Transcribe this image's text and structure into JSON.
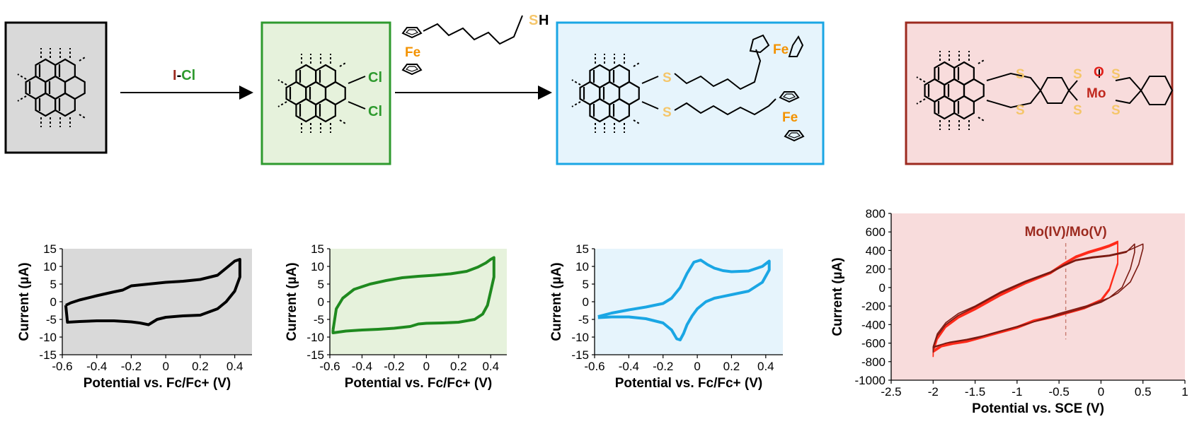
{
  "colors": {
    "box_gray": "#d9d9d9",
    "box_green_fill": "#e6f2dc",
    "box_green_edge": "#2e9a2e",
    "box_blue_fill": "#e6f4fc",
    "box_blue_edge": "#1aa6e4",
    "box_red_fill": "#f8dcdc",
    "box_red_edge": "#9c2a1f",
    "sulfur": "#f5c66a",
    "iron": "#f39200",
    "chlorine": "#2e9a2e",
    "iodine": "#9c2a1f",
    "molybdenum": "#c0281e",
    "oxygen": "#e0201a"
  },
  "scheme": {
    "reagent_iodine": "I",
    "reagent_dash": "-",
    "reagent_chlorine": "Cl",
    "cl_top": "Cl",
    "cl_bottom": "Cl",
    "ferrocene_reagent_fe": "Fe",
    "thiol_s": "S",
    "thiol_h": "H",
    "product_s_top": "S",
    "product_s_bottom": "S",
    "product_fe_top": "Fe",
    "product_fe_bottom": "Fe",
    "mo_s1": "S",
    "mo_s2": "S",
    "mo_s3": "S",
    "mo_s4": "S",
    "mo_s5": "S",
    "mo_s6": "S",
    "mo_label": "Mo",
    "mo_oxo": "O"
  },
  "chart_data": [
    {
      "type": "line",
      "background": "#d9d9d9",
      "line_color": "#000000",
      "xlabel": "Potential vs. Fc/Fc+ (V)",
      "ylabel": "Current (µA)",
      "xlim": [
        -0.6,
        0.5
      ],
      "ylim": [
        -15,
        15
      ],
      "xticks": [
        "-0.6",
        "-0.4",
        "-0.2",
        "0",
        "0.2",
        "0.4"
      ],
      "yticks": [
        "15",
        "10",
        "5",
        "0",
        "-5",
        "-10",
        "-15"
      ],
      "series": [
        {
          "x": [
            -0.58,
            -0.55,
            -0.5,
            -0.4,
            -0.3,
            -0.25,
            -0.2,
            -0.1,
            0,
            0.1,
            0.2,
            0.3,
            0.35,
            0.4,
            0.43,
            0.43,
            0.4,
            0.35,
            0.3,
            0.2,
            0.1,
            0,
            -0.05,
            -0.1,
            -0.15,
            -0.2,
            -0.3,
            -0.4,
            -0.5,
            -0.57,
            -0.58
          ],
          "y": [
            -1,
            -0.3,
            0.5,
            1.7,
            2.8,
            3.3,
            4.5,
            5,
            5.5,
            5.8,
            6.3,
            7.5,
            9.5,
            11.5,
            12,
            7,
            3,
            0,
            -2,
            -3.8,
            -4,
            -4.4,
            -5,
            -6.5,
            -6,
            -5.7,
            -5.4,
            -5.4,
            -5.6,
            -5.8,
            -1
          ]
        }
      ]
    },
    {
      "type": "line",
      "background": "#e6f2dc",
      "line_color": "#1f8a1f",
      "xlabel": "Potential vs. Fc/Fc+ (V)",
      "ylabel": "Current (µA)",
      "xlim": [
        -0.6,
        0.5
      ],
      "ylim": [
        -15,
        15
      ],
      "xticks": [
        "-0.6",
        "-0.4",
        "-0.2",
        "0",
        "0.2",
        "0.4"
      ],
      "yticks": [
        "15",
        "10",
        "5",
        "0",
        "-5",
        "-10",
        "-15"
      ],
      "series": [
        {
          "x": [
            -0.58,
            -0.56,
            -0.52,
            -0.45,
            -0.35,
            -0.25,
            -0.15,
            -0.05,
            0.05,
            0.15,
            0.25,
            0.32,
            0.37,
            0.4,
            0.42,
            0.42,
            0.4,
            0.38,
            0.35,
            0.3,
            0.2,
            0.1,
            0,
            -0.05,
            -0.1,
            -0.2,
            -0.3,
            -0.4,
            -0.5,
            -0.58,
            -0.58
          ],
          "y": [
            -8,
            -2,
            1,
            3.5,
            5,
            6,
            6.8,
            7.2,
            7.5,
            7.9,
            8.6,
            9.8,
            11,
            12,
            12.5,
            7,
            3,
            -1,
            -3.5,
            -5,
            -5.8,
            -6,
            -6.1,
            -6.3,
            -7,
            -7.5,
            -7.8,
            -8,
            -8.3,
            -8.8,
            -8
          ]
        }
      ]
    },
    {
      "type": "line",
      "background": "#e6f4fc",
      "line_color": "#1aa6e4",
      "xlabel": "Potential vs. Fc/Fc+ (V)",
      "ylabel": "Current (µA)",
      "xlim": [
        -0.6,
        0.5
      ],
      "ylim": [
        -15,
        15
      ],
      "xticks": [
        "-0.6",
        "-0.4",
        "-0.2",
        "0",
        "0.2",
        "0.4"
      ],
      "yticks": [
        "15",
        "10",
        "5",
        "0",
        "-5",
        "-10",
        "-15"
      ],
      "series": [
        {
          "x": [
            -0.58,
            -0.5,
            -0.4,
            -0.3,
            -0.2,
            -0.15,
            -0.1,
            -0.06,
            -0.02,
            0.02,
            0.06,
            0.1,
            0.15,
            0.2,
            0.3,
            0.38,
            0.42,
            0.42,
            0.38,
            0.3,
            0.2,
            0.1,
            0.05,
            0,
            -0.03,
            -0.06,
            -0.08,
            -0.1,
            -0.12,
            -0.15,
            -0.2,
            -0.3,
            -0.4,
            -0.5,
            -0.58
          ],
          "y": [
            -4.2,
            -3.2,
            -2.3,
            -1.5,
            -0.5,
            1,
            4,
            8,
            11.2,
            11.8,
            10.5,
            9.5,
            8.8,
            8.5,
            8.7,
            10,
            11.5,
            9,
            5.5,
            3,
            2,
            1,
            0,
            -2,
            -4,
            -6.5,
            -9,
            -10.8,
            -10.5,
            -8,
            -6,
            -4.8,
            -4.3,
            -4.3,
            -4.5
          ]
        }
      ]
    },
    {
      "type": "line",
      "background": "#f8dcdc",
      "xlabel": "Potential vs. SCE (V)",
      "ylabel": "Current (µA)",
      "xlim": [
        -2.5,
        1
      ],
      "ylim": [
        -1000,
        800
      ],
      "xticks": [
        "-2.5",
        "-2",
        "-1.5",
        "-1",
        "-0.5",
        "0",
        "0.5",
        "1"
      ],
      "yticks": [
        "800",
        "600",
        "400",
        "200",
        "0",
        "-200",
        "-400",
        "-600",
        "-800",
        "-1000"
      ],
      "annotation": {
        "text": "Mo(IV)/Mo(V)",
        "x": -0.42
      },
      "series": [
        {
          "color": "#ff2a1a",
          "x": [
            -2,
            -1.95,
            -1.85,
            -1.7,
            -1.5,
            -1.2,
            -0.9,
            -0.6,
            -0.45,
            -0.3,
            -0.15,
            0,
            0.1,
            0.2,
            0.2,
            0.1,
            0,
            -0.2,
            -0.4,
            -0.6,
            -0.8,
            -1,
            -1.2,
            -1.4,
            -1.6,
            -1.75,
            -1.9,
            -2,
            -2
          ],
          "y": [
            -700,
            -560,
            -430,
            -330,
            -240,
            -90,
            40,
            150,
            240,
            320,
            370,
            410,
            440,
            480,
            250,
            -30,
            -150,
            -230,
            -280,
            -330,
            -370,
            -440,
            -490,
            -540,
            -590,
            -610,
            -640,
            -700,
            -750
          ]
        },
        {
          "color": "#ff2a1a",
          "x": [
            -2,
            -1.95,
            -1.85,
            -1.7,
            -1.5,
            -1.2,
            -0.9,
            -0.6,
            -0.45,
            -0.3,
            -0.15,
            0,
            0.1,
            0.2,
            0.2,
            0.1,
            0,
            -0.2,
            -0.4,
            -0.6,
            -0.8,
            -1,
            -1.2,
            -1.4,
            -1.6,
            -1.75,
            -1.9,
            -2,
            -2
          ],
          "y": [
            -690,
            -550,
            -420,
            -320,
            -230,
            -80,
            50,
            160,
            250,
            330,
            380,
            420,
            450,
            490,
            260,
            -20,
            -140,
            -220,
            -270,
            -320,
            -360,
            -430,
            -480,
            -530,
            -580,
            -600,
            -630,
            -690,
            -740
          ]
        },
        {
          "color": "#ff2a1a",
          "x": [
            -2,
            -1.95,
            -1.85,
            -1.7,
            -1.5,
            -1.2,
            -0.9,
            -0.6,
            -0.45,
            -0.3,
            -0.15,
            0,
            0.1,
            0.2,
            0.2,
            0.1,
            0,
            -0.2,
            -0.4,
            -0.6,
            -0.8,
            -1,
            -1.2,
            -1.4,
            -1.6,
            -1.75,
            -1.9,
            -2,
            -2
          ],
          "y": [
            -680,
            -540,
            -410,
            -310,
            -220,
            -70,
            60,
            170,
            260,
            340,
            390,
            430,
            460,
            500,
            270,
            -10,
            -130,
            -210,
            -260,
            -310,
            -350,
            -420,
            -470,
            -520,
            -570,
            -590,
            -620,
            -680,
            -730
          ]
        },
        {
          "color": "#7a1a12",
          "x": [
            -2,
            -1.95,
            -1.85,
            -1.7,
            -1.5,
            -1.2,
            -0.9,
            -0.6,
            -0.45,
            -0.3,
            -0.1,
            0.1,
            0.3,
            0.4,
            0.4,
            0.35,
            0.25,
            0.1,
            -0.1,
            -0.3,
            -0.5,
            -0.7,
            -0.9,
            -1.1,
            -1.3,
            -1.5,
            -1.7,
            -1.85,
            -2,
            -2
          ],
          "y": [
            -650,
            -520,
            -400,
            -300,
            -210,
            -60,
            60,
            160,
            230,
            290,
            320,
            340,
            380,
            470,
            380,
            200,
            0,
            -110,
            -180,
            -230,
            -280,
            -340,
            -400,
            -450,
            -500,
            -550,
            -580,
            -600,
            -650,
            -700
          ]
        },
        {
          "color": "#7a1a12",
          "x": [
            -2,
            -1.95,
            -1.85,
            -1.7,
            -1.5,
            -1.2,
            -0.9,
            -0.6,
            -0.45,
            -0.3,
            -0.1,
            0.1,
            0.3,
            0.5,
            0.5,
            0.45,
            0.35,
            0.2,
            0,
            -0.2,
            -0.4,
            -0.6,
            -0.8,
            -1,
            -1.2,
            -1.4,
            -1.6,
            -1.8,
            -2,
            -2
          ],
          "y": [
            -640,
            -500,
            -380,
            -280,
            -200,
            -50,
            70,
            170,
            240,
            300,
            330,
            350,
            390,
            470,
            420,
            250,
            60,
            -60,
            -160,
            -220,
            -270,
            -320,
            -370,
            -420,
            -470,
            -520,
            -560,
            -590,
            -640,
            -690
          ]
        }
      ]
    }
  ]
}
